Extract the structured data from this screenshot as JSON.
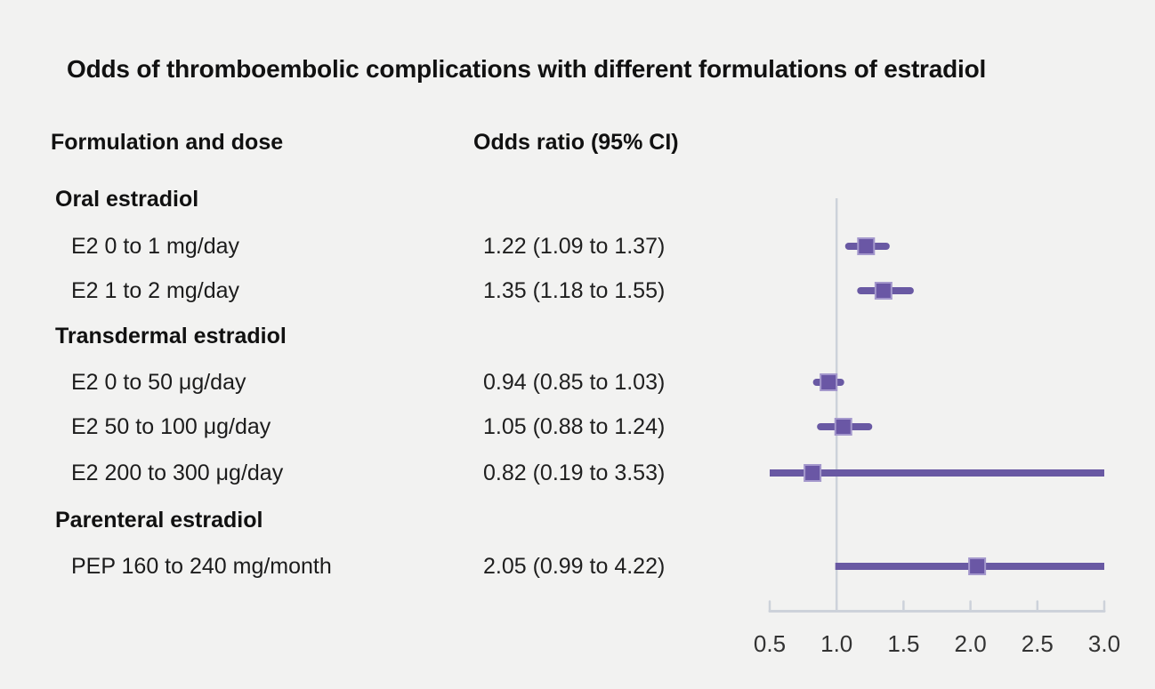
{
  "title": "Odds of thromboembolic complications with different formulations of estradiol",
  "columns": {
    "label": "Formulation and dose",
    "value": "Odds ratio (95% CI)"
  },
  "chart_data": {
    "type": "forest",
    "title": "Odds of thromboembolic complications with different formulations of estradiol",
    "x_axis": {
      "ticks": [
        0.5,
        1.0,
        1.5,
        2.0,
        2.5,
        3.0
      ],
      "tick_labels": [
        "0.5",
        "1.0",
        "1.5",
        "2.0",
        "2.5",
        "3.0"
      ],
      "xlim": [
        0.5,
        3.0
      ],
      "reference_line": 1.0,
      "scale": "linear",
      "grid": false
    },
    "marker": "square",
    "rows": [
      {
        "type": "group",
        "label": "Oral estradiol"
      },
      {
        "type": "item",
        "label": "E2 0 to 1 mg/day",
        "value": "1.22 (1.09 to 1.37)",
        "or": 1.22,
        "lo": 1.09,
        "hi": 1.37
      },
      {
        "type": "item",
        "label": "E2 1 to 2 mg/day",
        "value": "1.35 (1.18 to 1.55)",
        "or": 1.35,
        "lo": 1.18,
        "hi": 1.55
      },
      {
        "type": "group",
        "label": "Transdermal estradiol"
      },
      {
        "type": "item",
        "label": "E2 0 to 50 μg/day",
        "value": "0.94 (0.85 to 1.03)",
        "or": 0.94,
        "lo": 0.85,
        "hi": 1.03
      },
      {
        "type": "item",
        "label": "E2 50 to 100 μg/day",
        "value": "1.05 (0.88 to 1.24)",
        "or": 1.05,
        "lo": 0.88,
        "hi": 1.24
      },
      {
        "type": "item",
        "label": "E2 200 to 300 μg/day",
        "value": "0.82 (0.19 to 3.53)",
        "or": 0.82,
        "lo": 0.19,
        "hi": 3.53
      },
      {
        "type": "group",
        "label": "Parenteral estradiol"
      },
      {
        "type": "item",
        "label": "PEP 160 to 240 mg/month",
        "value": "2.05 (0.99 to 4.22)",
        "or": 2.05,
        "lo": 0.99,
        "hi": 4.22
      }
    ]
  },
  "colors": {
    "background": "#f2f2f1",
    "text": "#1b1b1b",
    "marker_fill": "#6a57a5",
    "marker_edge": "#a498cc",
    "ci_line": "#6959a3",
    "axis_line": "#cdd2da",
    "tick_label": "#333333"
  }
}
